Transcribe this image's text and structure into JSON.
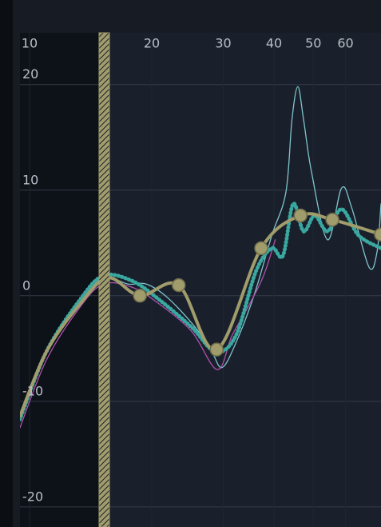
{
  "chart_data": {
    "type": "line",
    "log_x": true,
    "grid": true,
    "xlim": [
      9.47,
      73.4
    ],
    "xticks": [
      10,
      20,
      30,
      40,
      50,
      60
    ],
    "ylim": [
      -21.9,
      24.9
    ],
    "yticks": [
      20,
      10,
      0,
      -10,
      -20
    ],
    "series": [
      {
        "color": "#7fc4cc",
        "width": 1.3,
        "x": [
          9.47,
          11.0,
          13.3,
          15.2,
          17.5,
          19.4,
          21.9,
          25.6,
          28.1,
          29.8,
          32.2,
          35.7,
          39.5,
          42.8,
          44.3,
          45.8,
          47.3,
          49.5,
          54.2,
          58.7,
          62.2,
          68.6,
          71.8,
          73.4
        ],
        "values": [
          -11.7,
          -5.3,
          -0.6,
          1.7,
          1.1,
          1.1,
          -0.2,
          -3.0,
          -5.3,
          -6.8,
          -4.5,
          0,
          5.7,
          9.8,
          16.7,
          19.8,
          16.7,
          11.7,
          5.3,
          10.2,
          8.3,
          2.7,
          4.2,
          8.7
        ]
      },
      {
        "color": "#b050b0",
        "width": 1.3,
        "x": [
          9.47,
          11.0,
          13.3,
          15.2,
          17.9,
          20.9,
          25.1,
          29.0,
          31.5,
          34.5,
          37.7,
          40.3
        ],
        "values": [
          -12.5,
          -6.1,
          -1.1,
          1.1,
          0.8,
          -0.8,
          -3.4,
          -7.0,
          -3.8,
          -1.1,
          1.9,
          5.3
        ]
      },
      {
        "color": "#3aa8a0",
        "width": 5,
        "dotted": true,
        "x": [
          9.47,
          11.0,
          13.3,
          15.2,
          17.9,
          20.9,
          25.1,
          28.7,
          32.2,
          36.1,
          39.5,
          42.1,
          44.6,
          47.3,
          50.4,
          54.2,
          58.7,
          64.7,
          73.4
        ],
        "values": [
          -11.7,
          -5.3,
          -0.4,
          1.9,
          1.4,
          -0.4,
          -3.0,
          -5.3,
          -3.8,
          2.3,
          4.5,
          3.8,
          8.7,
          6.1,
          7.6,
          6.1,
          8.2,
          5.7,
          4.5
        ]
      },
      {
        "color": "#a09c6c",
        "width": 4,
        "x": [
          9.47,
          11.0,
          13.3,
          15.6,
          18.7,
          23.3,
          28.9,
          37.2,
          46.5,
          55.7,
          73.4
        ],
        "values": [
          -11.4,
          -5.3,
          -0.8,
          1.7,
          0,
          1.0,
          -5.1,
          4.5,
          7.6,
          7.2,
          5.8
        ]
      },
      {
        "color": "#a09c6c",
        "line": false,
        "x": [
          18.7,
          23.3,
          28.9,
          37.2,
          46.5,
          55.7,
          73.4
        ],
        "values": [
          0,
          1.0,
          -5.1,
          4.5,
          7.6,
          7.2,
          5.8
        ]
      }
    ]
  }
}
